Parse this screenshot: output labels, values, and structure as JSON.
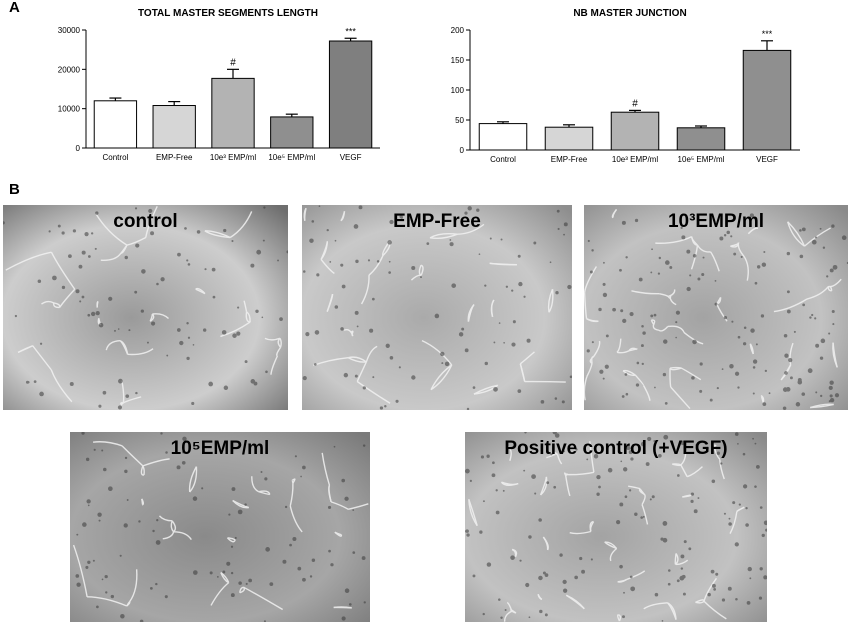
{
  "panel_a_label": "A",
  "panel_b_label": "B",
  "chart_data": [
    {
      "type": "bar",
      "title": "TOTAL MASTER SEGMENTS LENGTH",
      "xlabel": "",
      "ylabel": "",
      "categories": [
        "Control",
        "EMP-Free",
        "10e³ EMP/ml",
        "10e⁵ EMP/ml",
        "VEGF"
      ],
      "values": [
        12000,
        10800,
        17700,
        7900,
        27200
      ],
      "errors": [
        700,
        1000,
        2300,
        700,
        700
      ],
      "annotations": [
        "",
        "",
        "#",
        "",
        "***"
      ],
      "ylim": [
        0,
        30000
      ],
      "yticks": [
        0,
        10000,
        20000,
        30000
      ],
      "bar_colors": [
        "#ffffff",
        "#d6d6d6",
        "#b3b3b3",
        "#8f8f8f",
        "#7f7f7f"
      ]
    },
    {
      "type": "bar",
      "title": "NB MASTER JUNCTION",
      "xlabel": "",
      "ylabel": "",
      "categories": [
        "Control",
        "EMP-Free",
        "10e³ EMP/ml",
        "10e⁵ EMP/ml",
        "VEGF"
      ],
      "values": [
        44,
        38,
        63,
        37,
        166
      ],
      "errors": [
        3,
        4,
        3,
        3,
        16
      ],
      "annotations": [
        "",
        "",
        "#",
        "",
        "***"
      ],
      "ylim": [
        0,
        200
      ],
      "yticks": [
        0,
        50,
        100,
        150,
        200
      ],
      "bar_colors": [
        "#ffffff",
        "#d6d6d6",
        "#b3b3b3",
        "#8f8f8f",
        "#8f8f8f"
      ]
    }
  ],
  "micrographs": [
    {
      "label": "control",
      "shade": "dark-right"
    },
    {
      "label": "EMP-Free",
      "shade": "even"
    },
    {
      "label": "10³EMP/ml",
      "shade": "dense"
    },
    {
      "label": "10⁵EMP/ml",
      "shade": "dark"
    },
    {
      "label": "Positive control (+VEGF)",
      "shade": "dense"
    }
  ]
}
